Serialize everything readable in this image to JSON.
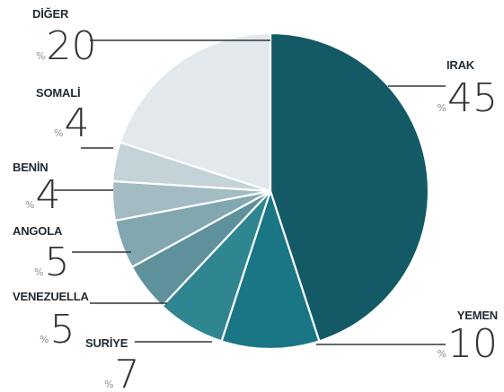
{
  "chart_data": {
    "type": "pie",
    "title": "",
    "percent_prefix": "%",
    "slices": [
      {
        "label": "IRAK",
        "value": 45,
        "color": "#135a66"
      },
      {
        "label": "YEMEN",
        "value": 10,
        "color": "#1a7684"
      },
      {
        "label": "SURİYE",
        "value": 7,
        "color": "#2f8691"
      },
      {
        "label": "VENEZUELLA",
        "value": 5,
        "color": "#5e919b"
      },
      {
        "label": "ANGOLA",
        "value": 5,
        "color": "#82a7b0"
      },
      {
        "label": "BENİN",
        "value": 4,
        "color": "#a3bcc3"
      },
      {
        "label": "SOMALİ",
        "value": 4,
        "color": "#c4d3d8"
      },
      {
        "label": "DİĞER",
        "value": 20,
        "color": "#e2e8eb"
      }
    ]
  }
}
